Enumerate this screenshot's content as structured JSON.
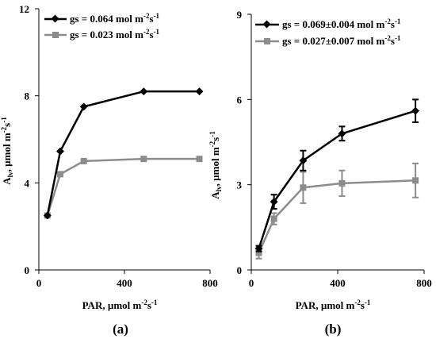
{
  "colors": {
    "black_series": "#000000",
    "gray_series": "#8c8c8c"
  },
  "chart_data": [
    {
      "type": "line",
      "caption": "(a)",
      "xlabel_main": "PAR, µmol m",
      "xlabel_unit_a": "-2",
      "xlabel_unit_b": "s",
      "xlabel_unit_c": "-1",
      "ylabel_main": "A",
      "ylabel_sub": "lv",
      "ylabel_rest": ", µmol m",
      "ylabel_sup_a": "-2",
      "ylabel_mid": "s",
      "ylabel_sup_b": "-1",
      "xlim": [
        0,
        800
      ],
      "ylim": [
        0,
        12
      ],
      "xticks": [
        0,
        400,
        800
      ],
      "yticks": [
        0,
        4,
        8,
        12
      ],
      "legend_position": "top-left",
      "series": [
        {
          "name": "gs = 0.064 mol m",
          "name_sup_a": "-2",
          "name_mid": "s",
          "name_sup_b": "-1",
          "marker": "diamond",
          "color": "#000000",
          "x": [
            40,
            100,
            210,
            490,
            750
          ],
          "y": [
            2.5,
            5.45,
            7.5,
            8.2,
            8.2
          ]
        },
        {
          "name": "gs = 0.023 mol m",
          "name_sup_a": "-2",
          "name_mid": "s",
          "name_sup_b": "-1",
          "marker": "square",
          "color": "#8c8c8c",
          "x": [
            40,
            100,
            210,
            490,
            750
          ],
          "y": [
            2.5,
            4.4,
            5.0,
            5.1,
            5.1
          ]
        }
      ]
    },
    {
      "type": "line",
      "caption": "(b)",
      "xlabel_main": "PAR, µmol m",
      "xlabel_unit_a": "-2",
      "xlabel_unit_b": "s",
      "xlabel_unit_c": "-1",
      "ylabel_main": "A",
      "ylabel_sub": "lv",
      "ylabel_rest": ", µmol m",
      "ylabel_sup_a": "-2",
      "ylabel_mid": "s",
      "ylabel_sup_b": "-1",
      "xlim": [
        0,
        800
      ],
      "ylim": [
        0,
        9
      ],
      "xticks": [
        0,
        400,
        800
      ],
      "yticks": [
        0,
        3,
        6,
        9
      ],
      "legend_position": "top-left",
      "series": [
        {
          "name": "gs = 0.069±0.004 mol m",
          "name_sup_a": "-2",
          "name_mid": "s",
          "name_sup_b": "-1",
          "marker": "diamond",
          "color": "#000000",
          "x": [
            35,
            105,
            240,
            420,
            760
          ],
          "y": [
            0.75,
            2.4,
            3.85,
            4.8,
            5.6
          ],
          "err": [
            0.1,
            0.25,
            0.35,
            0.25,
            0.4
          ]
        },
        {
          "name": "gs = 0.027±0.007 mol m",
          "name_sup_a": "-2",
          "name_mid": "s",
          "name_sup_b": "-1",
          "marker": "square",
          "color": "#8c8c8c",
          "x": [
            35,
            105,
            240,
            420,
            760
          ],
          "y": [
            0.6,
            1.8,
            2.9,
            3.05,
            3.15
          ],
          "err": [
            0.2,
            0.2,
            0.55,
            0.45,
            0.6
          ]
        }
      ]
    }
  ]
}
